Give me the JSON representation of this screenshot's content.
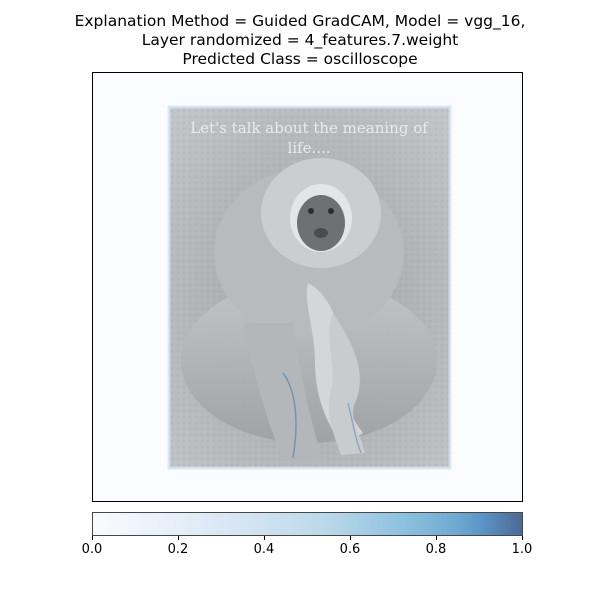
{
  "title_lines": [
    "Explanation Method = Guided GradCAM, Model = vgg_16,",
    "Layer randomized = 4_features.7.weight",
    "Predicted Class = oscilloscope"
  ],
  "image": {
    "caption_text": "Let's talk about the meaning of life....",
    "subject": "white-handed gibbon sitting on ground, greyscale photo"
  },
  "chart_data": {
    "type": "heatmap",
    "title": "Explanation Method = Guided GradCAM, Model = vgg_16, Layer randomized = 4_features.7.weight Predicted Class = oscilloscope",
    "colormap": "Blues",
    "colorbar": {
      "orientation": "horizontal",
      "range": [
        0.0,
        1.0
      ],
      "ticks": [
        0.0,
        0.2,
        0.4,
        0.6,
        0.8,
        1.0
      ],
      "tick_labels": [
        "0.0",
        "0.2",
        "0.4",
        "0.6",
        "0.8",
        "1.0"
      ]
    },
    "xticks": [],
    "yticks": []
  },
  "colors": {
    "low": "#f7fbff",
    "high": "#08306b",
    "photo_gray": "#a7aaac"
  }
}
